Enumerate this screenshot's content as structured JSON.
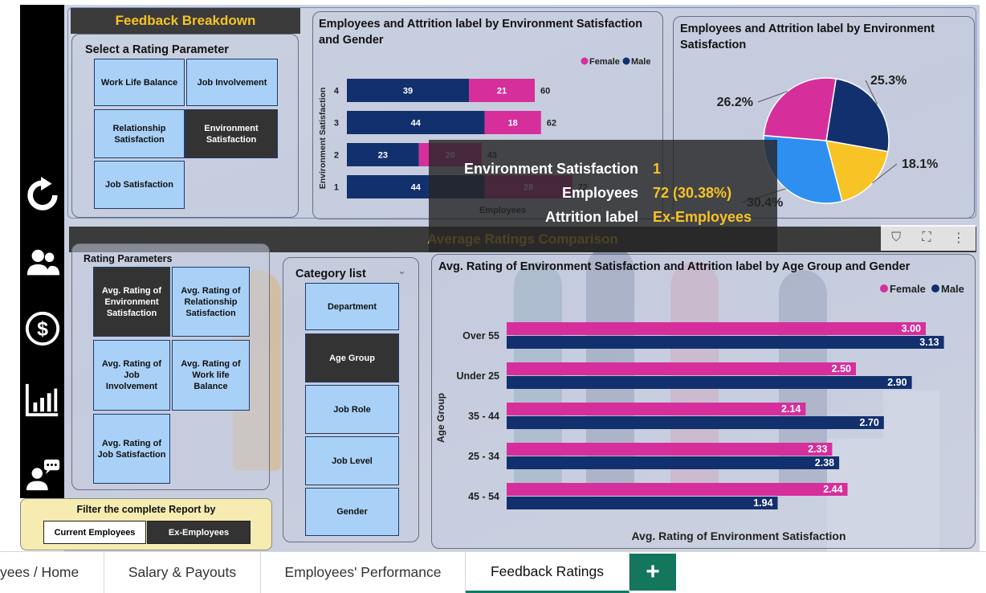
{
  "feedback_header": "Feedback Breakdown",
  "rating_selector": {
    "title": "Select a Rating Parameter",
    "options": [
      "Work Life Balance",
      "Job Involvement",
      "Relationship Satisfaction",
      "Environment Satisfaction",
      "Job Satisfaction"
    ],
    "selected": "Environment Satisfaction"
  },
  "chart1": {
    "title": "Employees and Attrition label by Environment Satisfaction and Gender",
    "legend": [
      "Female",
      "Male"
    ],
    "ylabel": "Environment Satisfaction",
    "xlabel": "Employees"
  },
  "chart2": {
    "title": "Employees and Attrition label by Environment Satisfaction"
  },
  "section_header": "Average Ratings Comparison",
  "rating_parameters": {
    "title": "Rating Parameters",
    "options": [
      "Avg. Rating of Environment Satisfaction",
      "Avg. Rating of Relationship Satisfaction",
      "Avg. Rating of Job Involvement",
      "Avg. Rating of Work life Balance",
      "Avg. Rating of Job Satisfaction"
    ],
    "selected": "Avg. Rating of Environment Satisfaction"
  },
  "category_list": {
    "title": "Category list",
    "options": [
      "Department",
      "Age Group",
      "Job Role",
      "Job Level",
      "Gender"
    ],
    "selected": "Age Group"
  },
  "chart3": {
    "title": "Avg. Rating of Environment Satisfaction and Attrition label by Age Group and Gender",
    "legend": [
      "Female",
      "Male"
    ],
    "ylabel": "Age Group",
    "xlabel": "Avg. Rating of Environment Satisfaction"
  },
  "filter": {
    "title": "Filter the complete Report by",
    "options": [
      "Current Employees",
      "Ex-Employees"
    ],
    "selected": "Ex-Employees"
  },
  "tooltip": {
    "rows": [
      {
        "key": "Environment Satisfaction",
        "value": "1"
      },
      {
        "key": "Employees",
        "value": "72 (30.38%)"
      },
      {
        "key": "Attrition label",
        "value": "Ex-Employees"
      }
    ]
  },
  "tabs": [
    "yees / Home",
    "Salary & Payouts",
    "Employees' Performance",
    "Feedback Ratings"
  ],
  "active_tab": "Feedback Ratings",
  "icons": {
    "nav": [
      "refresh-icon",
      "people-icon",
      "dollar-icon",
      "bar-chart-icon",
      "feedback-icon"
    ],
    "toolbar": [
      "filter-icon",
      "focus-mode-icon",
      "more-options-icon"
    ],
    "add_tab": "plus-icon"
  },
  "colors": {
    "female": "#d62f9c",
    "male": "#13306e",
    "accent": "#f7c325",
    "selected_tile": "#333333",
    "tile": "#a9d1f7",
    "tab_add": "#14765d"
  },
  "chart_data": [
    {
      "type": "bar",
      "orientation": "horizontal",
      "stacked": true,
      "categories": [
        "4",
        "3",
        "2",
        "1"
      ],
      "series": [
        {
          "name": "Male",
          "values": [
            39,
            44,
            23,
            44
          ]
        },
        {
          "name": "Female",
          "values": [
            21,
            18,
            20,
            28
          ]
        }
      ],
      "totals": [
        60,
        62,
        43,
        72
      ],
      "xlabel": "Employees",
      "ylabel": "Environment Satisfaction"
    },
    {
      "type": "pie",
      "slice_colors": [
        "#13306e",
        "#f7c325",
        "#2e8ff0",
        "#d62f9c"
      ],
      "values": [
        25.3,
        18.1,
        30.4,
        26.2
      ],
      "value_labels": [
        "25.3%",
        "18.1%",
        "30.4%",
        "26.2%"
      ]
    },
    {
      "type": "bar",
      "orientation": "horizontal",
      "categories": [
        "Over 55",
        "Under 25",
        "35 - 44",
        "25 - 34",
        "45 - 54"
      ],
      "series": [
        {
          "name": "Female",
          "values": [
            3.0,
            2.5,
            2.14,
            2.33,
            2.44
          ]
        },
        {
          "name": "Male",
          "values": [
            3.13,
            2.9,
            2.7,
            2.38,
            1.94
          ]
        }
      ],
      "value_labels": {
        "Female": [
          "3.00",
          "2.50",
          "2.14",
          "2.33",
          "2.44"
        ],
        "Male": [
          "3.13",
          "2.90",
          "2.70",
          "2.38",
          "1.94"
        ]
      },
      "xlabel": "Avg. Rating of Environment Satisfaction",
      "ylabel": "Age Group",
      "xlim": [
        0,
        3.5
      ]
    }
  ]
}
